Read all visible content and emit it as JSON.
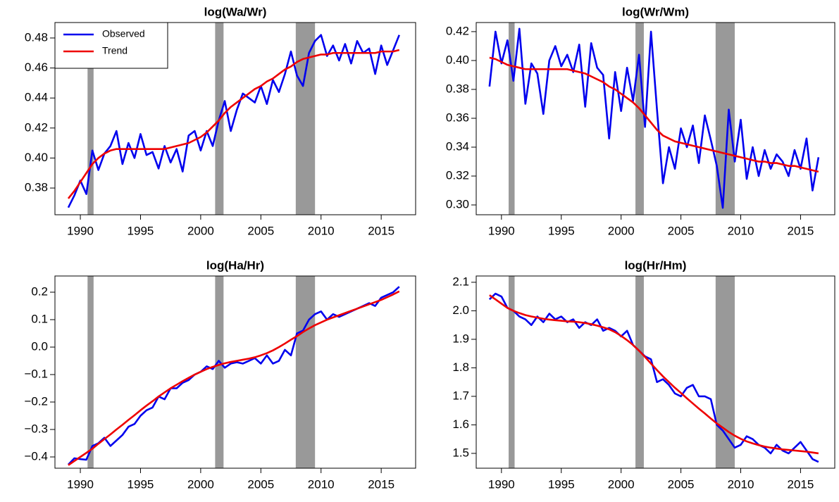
{
  "chart_data": [
    {
      "type": "line",
      "title": "log(Wa/Wr)",
      "x": [
        1989,
        1989.5,
        1990,
        1990.5,
        1991,
        1991.5,
        1992,
        1992.5,
        1993,
        1993.5,
        1994,
        1994.5,
        1995,
        1995.5,
        1996,
        1996.5,
        1997,
        1997.5,
        1998,
        1998.5,
        1999,
        1999.5,
        2000,
        2000.5,
        2001,
        2001.5,
        2002,
        2002.5,
        2003,
        2003.5,
        2004,
        2004.5,
        2005,
        2005.5,
        2006,
        2006.5,
        2007,
        2007.5,
        2008,
        2008.5,
        2009,
        2009.5,
        2010,
        2010.5,
        2011,
        2011.5,
        2012,
        2012.5,
        2013,
        2013.5,
        2014,
        2014.5,
        2015,
        2015.5,
        2016,
        2016.5
      ],
      "series": [
        {
          "name": "Observed",
          "color": "#0000ee",
          "values": [
            0.367,
            0.375,
            0.385,
            0.376,
            0.405,
            0.392,
            0.403,
            0.408,
            0.418,
            0.396,
            0.41,
            0.4,
            0.416,
            0.402,
            0.404,
            0.393,
            0.408,
            0.397,
            0.406,
            0.391,
            0.415,
            0.418,
            0.405,
            0.418,
            0.408,
            0.425,
            0.438,
            0.418,
            0.432,
            0.443,
            0.44,
            0.437,
            0.448,
            0.436,
            0.452,
            0.444,
            0.456,
            0.471,
            0.455,
            0.448,
            0.47,
            0.478,
            0.482,
            0.468,
            0.475,
            0.465,
            0.476,
            0.463,
            0.478,
            0.47,
            0.473,
            0.456,
            0.475,
            0.462,
            0.472,
            0.482
          ]
        },
        {
          "name": "Trend",
          "color": "#ee0000",
          "values": [
            0.373,
            0.378,
            0.384,
            0.39,
            0.396,
            0.4,
            0.403,
            0.405,
            0.406,
            0.406,
            0.406,
            0.406,
            0.406,
            0.406,
            0.406,
            0.406,
            0.406,
            0.407,
            0.408,
            0.409,
            0.41,
            0.412,
            0.414,
            0.417,
            0.421,
            0.425,
            0.43,
            0.434,
            0.437,
            0.44,
            0.443,
            0.446,
            0.448,
            0.451,
            0.453,
            0.456,
            0.459,
            0.461,
            0.464,
            0.466,
            0.467,
            0.468,
            0.469,
            0.469,
            0.47,
            0.47,
            0.47,
            0.47,
            0.47,
            0.47,
            0.47,
            0.47,
            0.471,
            0.471,
            0.471,
            0.472
          ]
        }
      ],
      "recessions": [
        [
          1990.6,
          1991.1
        ],
        [
          2001.2,
          2001.9
        ],
        [
          2007.9,
          2009.5
        ]
      ],
      "shade_color": "#999999",
      "xlim": [
        1987.89,
        2017.86
      ],
      "xticks": [
        1990,
        1995,
        2000,
        2005,
        2010,
        2015
      ],
      "ylim": [
        0.3622,
        0.4903
      ],
      "yticks": [
        0.38,
        {
          "value": 0.4,
          "label": "0.40"
        },
        0.42,
        0.44,
        0.46,
        0.48
      ],
      "legend": "top-left"
    },
    {
      "type": "line",
      "title": "log(Wr/Wm)",
      "x": [
        1989,
        1989.5,
        1990,
        1990.5,
        1991,
        1991.5,
        1992,
        1992.5,
        1993,
        1993.5,
        1994,
        1994.5,
        1995,
        1995.5,
        1996,
        1996.5,
        1997,
        1997.5,
        1998,
        1998.5,
        1999,
        1999.5,
        2000,
        2000.5,
        2001,
        2001.5,
        2002,
        2002.5,
        2003,
        2003.5,
        2004,
        2004.5,
        2005,
        2005.5,
        2006,
        2006.5,
        2007,
        2007.5,
        2008,
        2008.5,
        2009,
        2009.5,
        2010,
        2010.5,
        2011,
        2011.5,
        2012,
        2012.5,
        2013,
        2013.5,
        2014,
        2014.5,
        2015,
        2015.5,
        2016,
        2016.5
      ],
      "series": [
        {
          "name": "Observed",
          "color": "#0000ee",
          "values": [
            0.382,
            0.42,
            0.398,
            0.414,
            0.386,
            0.422,
            0.37,
            0.398,
            0.391,
            0.363,
            0.4,
            0.41,
            0.396,
            0.404,
            0.392,
            0.411,
            0.368,
            0.412,
            0.395,
            0.39,
            0.346,
            0.392,
            0.365,
            0.395,
            0.372,
            0.404,
            0.354,
            0.42,
            0.366,
            0.315,
            0.34,
            0.325,
            0.353,
            0.34,
            0.355,
            0.329,
            0.362,
            0.345,
            0.327,
            0.298,
            0.366,
            0.33,
            0.359,
            0.318,
            0.34,
            0.32,
            0.338,
            0.325,
            0.335,
            0.33,
            0.32,
            0.338,
            0.325,
            0.346,
            0.31,
            0.333
          ]
        },
        {
          "name": "Trend",
          "color": "#ee0000",
          "values": [
            0.402,
            0.401,
            0.399,
            0.397,
            0.396,
            0.395,
            0.394,
            0.394,
            0.394,
            0.394,
            0.394,
            0.394,
            0.394,
            0.394,
            0.393,
            0.392,
            0.391,
            0.389,
            0.387,
            0.385,
            0.382,
            0.38,
            0.377,
            0.374,
            0.371,
            0.367,
            0.362,
            0.357,
            0.352,
            0.348,
            0.346,
            0.344,
            0.343,
            0.342,
            0.341,
            0.34,
            0.339,
            0.338,
            0.337,
            0.336,
            0.335,
            0.334,
            0.333,
            0.332,
            0.331,
            0.33,
            0.33,
            0.329,
            0.329,
            0.328,
            0.327,
            0.327,
            0.326,
            0.325,
            0.324,
            0.323
          ]
        }
      ],
      "recessions": [
        [
          1990.6,
          1991.1
        ],
        [
          2001.2,
          2001.9
        ],
        [
          2007.9,
          2009.5
        ]
      ],
      "shade_color": "#999999",
      "xlim": [
        1987.89,
        2017.86
      ],
      "xticks": [
        1990,
        1995,
        2000,
        2005,
        2010,
        2015
      ],
      "ylim": [
        0.2932,
        0.4263
      ],
      "yticks": [
        {
          "value": 0.3,
          "label": "0.30"
        },
        0.32,
        0.34,
        0.36,
        0.38,
        {
          "value": 0.4,
          "label": "0.40"
        },
        0.42
      ]
    },
    {
      "type": "line",
      "title": "log(Ha/Hr)",
      "x": [
        1989,
        1989.5,
        1990,
        1990.5,
        1991,
        1991.5,
        1992,
        1992.5,
        1993,
        1993.5,
        1994,
        1994.5,
        1995,
        1995.5,
        1996,
        1996.5,
        1997,
        1997.5,
        1998,
        1998.5,
        1999,
        1999.5,
        2000,
        2000.5,
        2001,
        2001.5,
        2002,
        2002.5,
        2003,
        2003.5,
        2004,
        2004.5,
        2005,
        2005.5,
        2006,
        2006.5,
        2007,
        2007.5,
        2008,
        2008.5,
        2009,
        2009.5,
        2010,
        2010.5,
        2011,
        2011.5,
        2012,
        2012.5,
        2013,
        2013.5,
        2014,
        2014.5,
        2015,
        2015.5,
        2016,
        2016.5
      ],
      "series": [
        {
          "name": "Observed",
          "color": "#0000ee",
          "values": [
            -0.428,
            -0.405,
            -0.408,
            -0.41,
            -0.36,
            -0.35,
            -0.33,
            -0.36,
            -0.34,
            -0.32,
            -0.29,
            -0.28,
            -0.25,
            -0.23,
            -0.22,
            -0.18,
            -0.19,
            -0.15,
            -0.15,
            -0.13,
            -0.12,
            -0.1,
            -0.09,
            -0.07,
            -0.08,
            -0.05,
            -0.075,
            -0.06,
            -0.055,
            -0.06,
            -0.05,
            -0.04,
            -0.06,
            -0.03,
            -0.06,
            -0.05,
            -0.01,
            -0.03,
            0.05,
            0.06,
            0.1,
            0.12,
            0.13,
            0.1,
            0.12,
            0.11,
            0.12,
            0.13,
            0.14,
            0.15,
            0.16,
            0.15,
            0.18,
            0.19,
            0.2,
            0.22
          ]
        },
        {
          "name": "Trend",
          "color": "#ee0000",
          "values": [
            -0.43,
            -0.415,
            -0.4,
            -0.385,
            -0.37,
            -0.352,
            -0.335,
            -0.318,
            -0.3,
            -0.283,
            -0.265,
            -0.248,
            -0.23,
            -0.213,
            -0.197,
            -0.18,
            -0.165,
            -0.15,
            -0.137,
            -0.124,
            -0.112,
            -0.1,
            -0.09,
            -0.08,
            -0.072,
            -0.065,
            -0.059,
            -0.054,
            -0.05,
            -0.046,
            -0.042,
            -0.037,
            -0.03,
            -0.022,
            -0.012,
            0.0,
            0.013,
            0.027,
            0.04,
            0.055,
            0.068,
            0.08,
            0.09,
            0.1,
            0.108,
            0.116,
            0.124,
            0.132,
            0.14,
            0.148,
            0.156,
            0.164,
            0.172,
            0.182,
            0.192,
            0.203
          ]
        }
      ],
      "recessions": [
        [
          1990.6,
          1991.1
        ],
        [
          2001.2,
          2001.9
        ],
        [
          2007.9,
          2009.5
        ]
      ],
      "shade_color": "#999999",
      "xlim": [
        1987.89,
        2017.86
      ],
      "xticks": [
        1990,
        1995,
        2000,
        2005,
        2010,
        2015
      ],
      "ylim": [
        -0.441,
        0.259
      ],
      "yticks": [
        {
          "value": -0.4,
          "label": "−0.4"
        },
        {
          "value": -0.3,
          "label": "−0.3"
        },
        {
          "value": -0.2,
          "label": "−0.2"
        },
        {
          "value": -0.1,
          "label": "−0.1"
        },
        {
          "value": 0,
          "label": "0.0"
        },
        0.1,
        0.2
      ]
    },
    {
      "type": "line",
      "title": "log(Hr/Hm)",
      "x": [
        1989,
        1989.5,
        1990,
        1990.5,
        1991,
        1991.5,
        1992,
        1992.5,
        1993,
        1993.5,
        1994,
        1994.5,
        1995,
        1995.5,
        1996,
        1996.5,
        1997,
        1997.5,
        1998,
        1998.5,
        1999,
        1999.5,
        2000,
        2000.5,
        2001,
        2001.5,
        2002,
        2002.5,
        2003,
        2003.5,
        2004,
        2004.5,
        2005,
        2005.5,
        2006,
        2006.5,
        2007,
        2007.5,
        2008,
        2008.5,
        2009,
        2009.5,
        2010,
        2010.5,
        2011,
        2011.5,
        2012,
        2012.5,
        2013,
        2013.5,
        2014,
        2014.5,
        2015,
        2015.5,
        2016,
        2016.5
      ],
      "series": [
        {
          "name": "Observed",
          "color": "#0000ee",
          "values": [
            2.04,
            2.06,
            2.05,
            2.01,
            2.0,
            1.98,
            1.97,
            1.95,
            1.98,
            1.96,
            1.99,
            1.97,
            1.98,
            1.96,
            1.97,
            1.94,
            1.96,
            1.95,
            1.97,
            1.93,
            1.94,
            1.93,
            1.91,
            1.93,
            1.88,
            1.86,
            1.84,
            1.83,
            1.75,
            1.76,
            1.74,
            1.71,
            1.7,
            1.73,
            1.74,
            1.7,
            1.7,
            1.69,
            1.6,
            1.58,
            1.55,
            1.52,
            1.53,
            1.56,
            1.55,
            1.53,
            1.52,
            1.5,
            1.53,
            1.51,
            1.5,
            1.52,
            1.54,
            1.51,
            1.48,
            1.47
          ]
        },
        {
          "name": "Trend",
          "color": "#ee0000",
          "values": [
            2.055,
            2.04,
            2.025,
            2.01,
            2.0,
            1.992,
            1.985,
            1.98,
            1.976,
            1.972,
            1.969,
            1.967,
            1.965,
            1.963,
            1.962,
            1.96,
            1.957,
            1.953,
            1.948,
            1.942,
            1.935,
            1.925,
            1.912,
            1.897,
            1.88,
            1.86,
            1.838,
            1.815,
            1.792,
            1.77,
            1.75,
            1.73,
            1.712,
            1.693,
            1.675,
            1.657,
            1.64,
            1.622,
            1.605,
            1.59,
            1.575,
            1.562,
            1.551,
            1.542,
            1.535,
            1.529,
            1.524,
            1.52,
            1.517,
            1.514,
            1.512,
            1.51,
            1.508,
            1.506,
            1.503,
            1.5
          ]
        }
      ],
      "recessions": [
        [
          1990.6,
          1991.1
        ],
        [
          2001.2,
          2001.9
        ],
        [
          2007.9,
          2009.5
        ]
      ],
      "shade_color": "#999999",
      "xlim": [
        1987.89,
        2017.86
      ],
      "xticks": [
        1990,
        1995,
        2000,
        2005,
        2010,
        2015
      ],
      "ylim": [
        1.448,
        2.122
      ],
      "yticks": [
        1.5,
        1.6,
        1.7,
        1.8,
        1.9,
        {
          "value": 2.0,
          "label": "2.0"
        },
        2.1
      ]
    }
  ]
}
